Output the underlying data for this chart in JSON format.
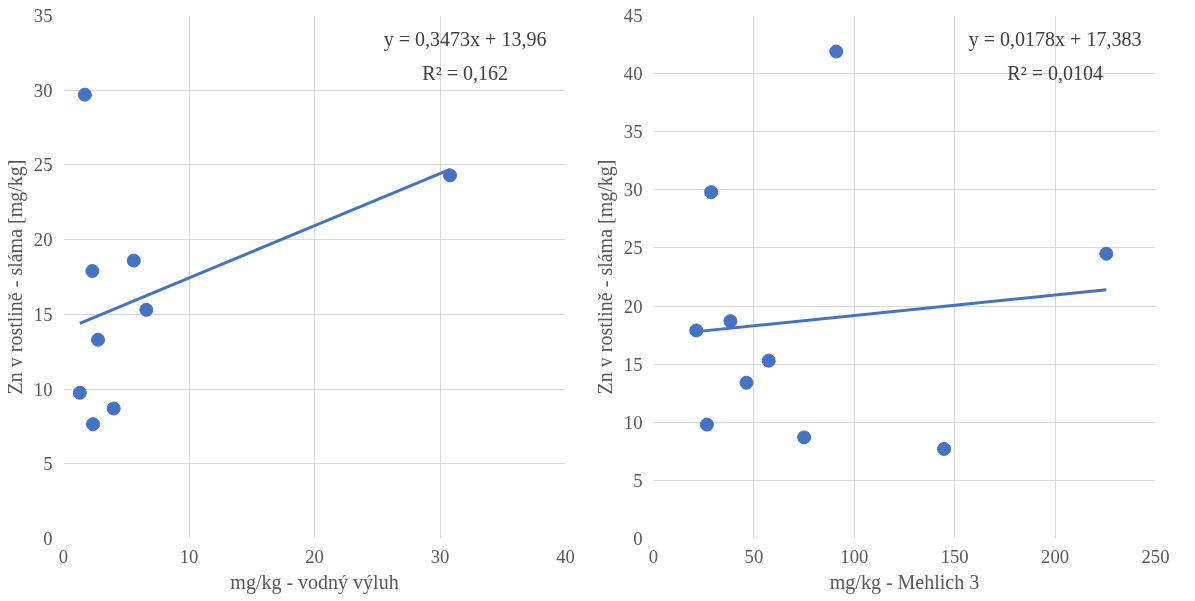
{
  "chart_data": [
    {
      "type": "scatter",
      "xlabel": "mg/kg - vodný výluh",
      "ylabel": "Zn v rostlině - sláma [mg/kg]",
      "annotations": [
        "y = 0,3473x + 13,96",
        "R² = 0,162"
      ],
      "xlim": [
        0,
        40
      ],
      "xticks": [
        0,
        10,
        20,
        30,
        40
      ],
      "ylim": [
        0,
        35
      ],
      "yticks": [
        0,
        5,
        10,
        15,
        20,
        25,
        30,
        35
      ],
      "grid": true,
      "series": [
        {
          "marker": "circle",
          "color": "#4472c4",
          "x": [
            1.7,
            30.8,
            2.3,
            5.6,
            6.6,
            2.75,
            1.3,
            4.0,
            2.35
          ],
          "values": [
            29.7,
            24.3,
            17.9,
            18.6,
            15.3,
            13.3,
            9.75,
            8.7,
            7.65
          ]
        },
        {
          "type": "line",
          "marker": "none",
          "color": "#4472c4",
          "x": [
            1.3,
            30.8
          ],
          "values": [
            14.4,
            24.7
          ]
        }
      ]
    },
    {
      "type": "scatter",
      "xlabel": "mg/kg - Mehlich 3",
      "ylabel": "Zn v rostlině - sláma [mg/kg]",
      "annotations": [
        "y = 0,0178x + 17,383",
        "R² = 0,0104"
      ],
      "xlim": [
        0,
        250
      ],
      "xticks": [
        0,
        50,
        100,
        150,
        200,
        250
      ],
      "ylim": [
        0,
        45
      ],
      "yticks": [
        0,
        5,
        10,
        15,
        20,
        25,
        30,
        35,
        40,
        45
      ],
      "grid": true,
      "series": [
        {
          "marker": "circle",
          "color": "#4472c4",
          "x": [
            91,
            28.7,
            225.5,
            21.3,
            38.3,
            57.4,
            46.3,
            26.6,
            75,
            144.7
          ],
          "values": [
            41.9,
            29.8,
            24.5,
            17.9,
            18.7,
            15.3,
            13.4,
            9.8,
            8.7,
            7.7
          ]
        },
        {
          "type": "line",
          "marker": "none",
          "color": "#4472c4",
          "x": [
            21.3,
            225.5
          ],
          "values": [
            17.8,
            21.4
          ]
        }
      ]
    }
  ]
}
